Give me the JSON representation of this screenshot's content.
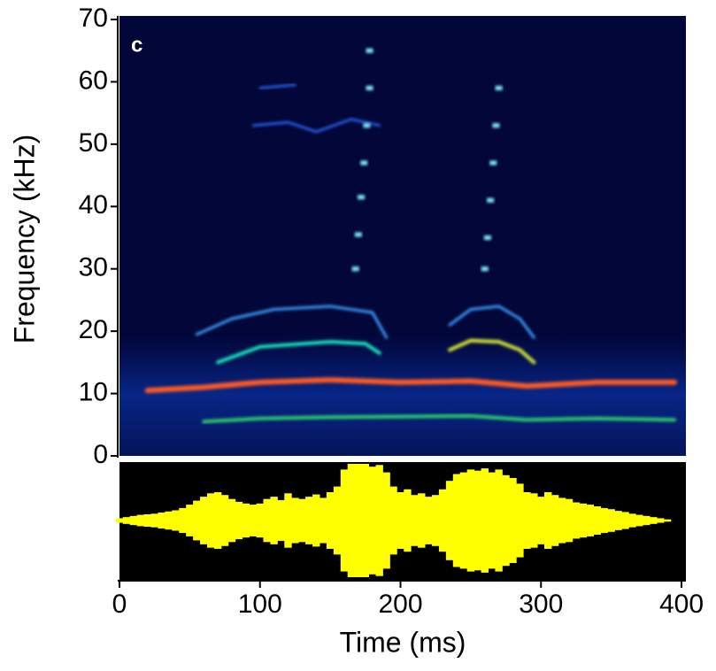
{
  "chart_data": [
    {
      "type": "spectrogram",
      "label": "c",
      "ylabel": "Frequency (kHz)",
      "xlim": [
        0,
        400
      ],
      "ylim": [
        0,
        70
      ],
      "yticks": [
        0,
        10,
        20,
        30,
        40,
        50,
        60,
        70
      ],
      "series": [
        {
          "style": "line",
          "color": "#2bd26a",
          "width": 4,
          "x": [
            60,
            100,
            150,
            200,
            250,
            290,
            340,
            395
          ],
          "values": [
            5.5,
            6,
            6.2,
            6.3,
            6.4,
            5.8,
            6,
            5.8
          ]
        },
        {
          "style": "line",
          "color": "#ff5a20",
          "width": 6,
          "x": [
            20,
            60,
            100,
            150,
            200,
            250,
            290,
            340,
            395
          ],
          "values": [
            10.5,
            11,
            11.8,
            12.2,
            11.8,
            12,
            11.2,
            11.8,
            11.8
          ]
        },
        {
          "style": "line",
          "color": "#18e8c0",
          "width": 4,
          "x": [
            70,
            100,
            150,
            175,
            185
          ],
          "values": [
            15,
            17.5,
            18.3,
            18,
            16.5
          ]
        },
        {
          "style": "line",
          "color": "#d8e830",
          "width": 4,
          "x": [
            235,
            250,
            270,
            285,
            295
          ],
          "values": [
            17,
            18.5,
            18.3,
            17,
            15
          ]
        },
        {
          "style": "line",
          "color": "#3aa0ff",
          "width": 3,
          "x": [
            55,
            80,
            110,
            150,
            180,
            190
          ],
          "values": [
            19.5,
            22,
            23.5,
            24,
            23,
            19
          ]
        },
        {
          "style": "line",
          "color": "#3aa0ff",
          "width": 3,
          "x": [
            235,
            250,
            270,
            285,
            295
          ],
          "values": [
            21,
            23.5,
            24,
            22,
            19
          ]
        },
        {
          "style": "line",
          "color": "#2b6cff",
          "width": 2.5,
          "x": [
            95,
            120,
            140,
            165,
            185
          ],
          "values": [
            53,
            53.5,
            52,
            54,
            53
          ]
        },
        {
          "style": "line",
          "color": "#2b6cff",
          "width": 2.5,
          "x": [
            100,
            125
          ],
          "values": [
            59,
            59.5
          ]
        },
        {
          "style": "dots",
          "color": "#7ff0ff",
          "width": 5,
          "x": [
            168,
            170,
            172,
            174,
            176,
            178,
            178,
            260,
            262,
            264,
            266,
            268,
            270
          ],
          "values": [
            30,
            35.5,
            41.5,
            47,
            53,
            59,
            65,
            30,
            35,
            41,
            47,
            53,
            59
          ]
        }
      ]
    },
    {
      "type": "waveform",
      "xlabel": "Time (ms)",
      "color": "#ffff00",
      "xlim": [
        0,
        400
      ],
      "xticks": [
        0,
        100,
        200,
        300,
        400
      ],
      "ylim": [
        0,
        1
      ],
      "x": [
        0,
        5,
        10,
        15,
        20,
        25,
        30,
        35,
        40,
        45,
        50,
        55,
        60,
        65,
        70,
        75,
        80,
        85,
        90,
        95,
        100,
        105,
        110,
        115,
        120,
        125,
        130,
        135,
        140,
        145,
        150,
        155,
        160,
        165,
        170,
        175,
        180,
        185,
        190,
        195,
        200,
        205,
        210,
        215,
        220,
        225,
        230,
        235,
        240,
        245,
        250,
        255,
        260,
        265,
        270,
        275,
        280,
        285,
        290,
        295,
        300,
        305,
        310,
        315,
        320,
        325,
        330,
        335,
        340,
        345,
        350,
        355,
        360,
        365,
        370,
        375,
        380,
        385,
        390
      ],
      "values": [
        0.04,
        0.06,
        0.08,
        0.1,
        0.11,
        0.12,
        0.14,
        0.16,
        0.18,
        0.22,
        0.28,
        0.35,
        0.42,
        0.48,
        0.5,
        0.45,
        0.38,
        0.33,
        0.3,
        0.28,
        0.3,
        0.38,
        0.42,
        0.36,
        0.48,
        0.4,
        0.38,
        0.42,
        0.46,
        0.4,
        0.5,
        0.6,
        0.9,
        1,
        1,
        1,
        0.95,
        0.98,
        0.85,
        0.6,
        0.5,
        0.55,
        0.45,
        0.48,
        0.42,
        0.45,
        0.55,
        0.7,
        0.82,
        0.85,
        0.9,
        0.88,
        0.92,
        0.85,
        0.9,
        0.8,
        0.75,
        0.65,
        0.5,
        0.48,
        0.42,
        0.5,
        0.45,
        0.4,
        0.38,
        0.32,
        0.3,
        0.28,
        0.25,
        0.22,
        0.2,
        0.17,
        0.15,
        0.12,
        0.1,
        0.08,
        0.06,
        0.04,
        0.02
      ]
    }
  ]
}
